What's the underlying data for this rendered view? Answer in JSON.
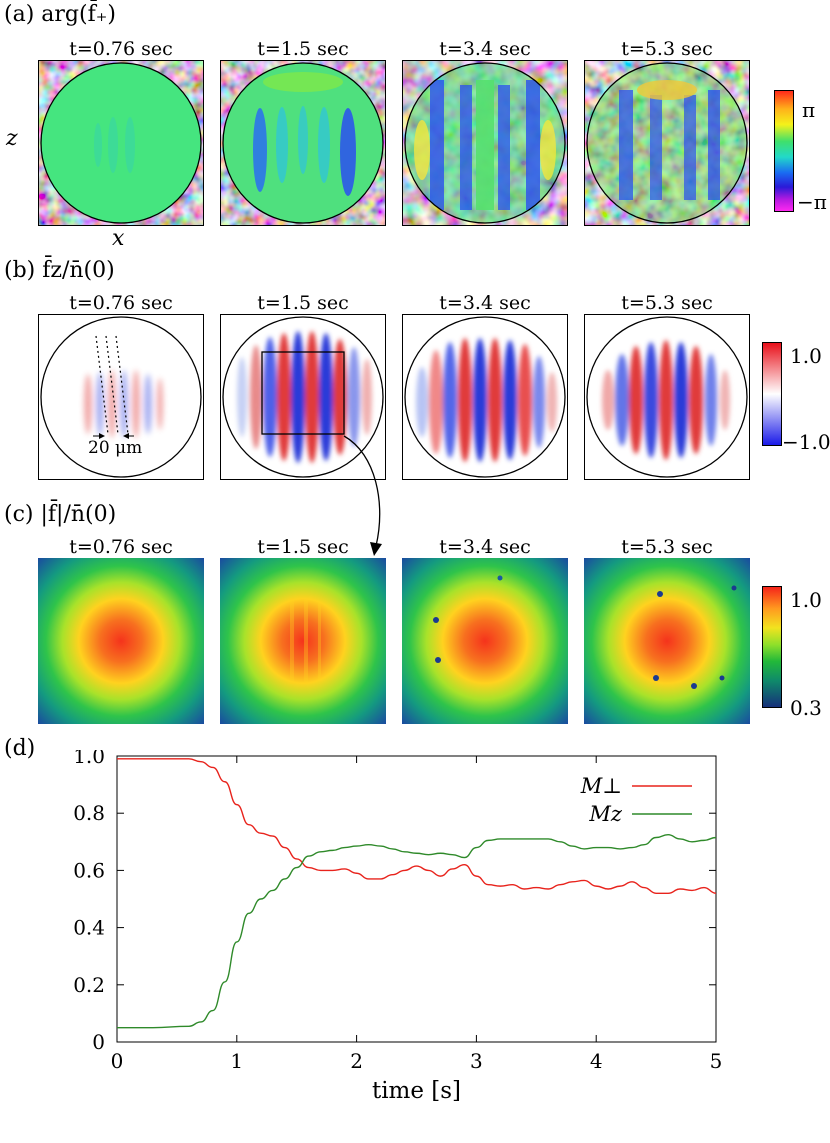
{
  "panel_a": {
    "label": "(a) arg(f̄₊)",
    "axis_x": "x",
    "axis_z": "z",
    "colorbar_max": "π",
    "colorbar_min": "−π",
    "titles": [
      "t=0.76 sec",
      "t=1.5 sec",
      "t=3.4 sec",
      "t=5.3 sec"
    ]
  },
  "panel_b": {
    "label": "(b) f̄z/n̄(0)",
    "colorbar_max": "1.0",
    "colorbar_min": "−1.0",
    "scale_annotation": "20 μm",
    "titles": [
      "t=0.76 sec",
      "t=1.5 sec",
      "t=3.4 sec",
      "t=5.3 sec"
    ]
  },
  "panel_c": {
    "label": "(c) |f̄|/n̄(0)",
    "colorbar_max": "1.0",
    "colorbar_min": "0.3",
    "titles": [
      "t=0.76 sec",
      "t=1.5 sec",
      "t=3.4 sec",
      "t=5.3 sec"
    ]
  },
  "panel_d": {
    "label": "(d)"
  },
  "colors": {
    "mperp": "#e8231c",
    "mz": "#2f8a2a"
  },
  "chart_data": {
    "type": "line",
    "title": "",
    "xlabel": "time [s]",
    "ylabel": "",
    "xlim": [
      0,
      5
    ],
    "ylim": [
      0,
      1.0
    ],
    "xticks": [
      "0",
      "1",
      "2",
      "3",
      "4",
      "5"
    ],
    "yticks": [
      "0",
      "0.2",
      "0.4",
      "0.6",
      "0.8",
      "1.0"
    ],
    "legend_position": "top-right",
    "series": [
      {
        "name": "M⊥",
        "x": [
          0,
          0.3,
          0.6,
          0.7,
          0.8,
          0.9,
          1.0,
          1.1,
          1.2,
          1.3,
          1.4,
          1.5,
          1.6,
          1.7,
          1.8,
          1.9,
          2.0,
          2.1,
          2.2,
          2.3,
          2.4,
          2.5,
          2.6,
          2.7,
          2.8,
          2.9,
          3.0,
          3.1,
          3.2,
          3.3,
          3.4,
          3.5,
          3.6,
          3.7,
          3.8,
          3.9,
          4.0,
          4.1,
          4.2,
          4.3,
          4.4,
          4.5,
          4.6,
          4.7,
          4.8,
          4.9,
          5.0
        ],
        "values": [
          0.99,
          0.99,
          0.99,
          0.98,
          0.96,
          0.91,
          0.83,
          0.76,
          0.73,
          0.72,
          0.68,
          0.64,
          0.61,
          0.6,
          0.6,
          0.605,
          0.59,
          0.57,
          0.57,
          0.585,
          0.6,
          0.615,
          0.6,
          0.58,
          0.605,
          0.62,
          0.58,
          0.55,
          0.545,
          0.55,
          0.535,
          0.54,
          0.535,
          0.55,
          0.56,
          0.565,
          0.545,
          0.535,
          0.545,
          0.56,
          0.54,
          0.52,
          0.52,
          0.535,
          0.53,
          0.54,
          0.52
        ]
      },
      {
        "name": "Mz",
        "x": [
          0,
          0.3,
          0.6,
          0.7,
          0.8,
          0.9,
          1.0,
          1.1,
          1.2,
          1.3,
          1.4,
          1.5,
          1.6,
          1.7,
          1.8,
          1.9,
          2.0,
          2.1,
          2.2,
          2.3,
          2.4,
          2.5,
          2.6,
          2.7,
          2.8,
          2.9,
          3.0,
          3.1,
          3.2,
          3.3,
          3.4,
          3.5,
          3.6,
          3.7,
          3.8,
          3.9,
          4.0,
          4.1,
          4.2,
          4.3,
          4.4,
          4.5,
          4.6,
          4.7,
          4.8,
          4.9,
          5.0
        ],
        "values": [
          0.05,
          0.05,
          0.055,
          0.07,
          0.11,
          0.21,
          0.35,
          0.45,
          0.5,
          0.53,
          0.57,
          0.61,
          0.65,
          0.665,
          0.67,
          0.68,
          0.685,
          0.69,
          0.685,
          0.675,
          0.665,
          0.66,
          0.655,
          0.66,
          0.655,
          0.645,
          0.68,
          0.705,
          0.71,
          0.71,
          0.71,
          0.71,
          0.71,
          0.7,
          0.685,
          0.675,
          0.68,
          0.68,
          0.675,
          0.68,
          0.69,
          0.715,
          0.725,
          0.71,
          0.7,
          0.705,
          0.715
        ]
      }
    ]
  }
}
